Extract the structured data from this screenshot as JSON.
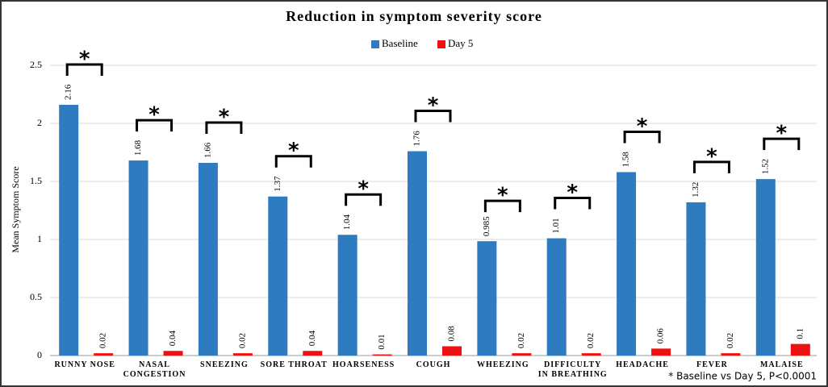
{
  "chart_data": {
    "type": "bar",
    "title": "Reduction in symptom severity score",
    "y_label": "Mean Symptom Score",
    "categories": [
      "RUNNY NOSE",
      "NASAL CONGESTION",
      "SNEEZING",
      "SORE THROAT",
      "HOARSENESS",
      "COUGH",
      "WHEEZING",
      "DIFFICULTY IN BREATHING",
      "HEADACHE",
      "FEVER",
      "MALAISE"
    ],
    "series": [
      {
        "name": "Baseline",
        "color": "#2e7bbf",
        "values": [
          2.16,
          1.68,
          1.66,
          1.37,
          1.04,
          1.76,
          0.985,
          1.01,
          1.58,
          1.32,
          1.52
        ]
      },
      {
        "name": "Day 5",
        "color": "#ee1111",
        "values": [
          0.02,
          0.04,
          0.02,
          0.04,
          0.01,
          0.08,
          0.02,
          0.02,
          0.06,
          0.02,
          0.1
        ]
      }
    ],
    "ylim": [
      0,
      2.5
    ],
    "yticks": [
      0,
      0.5,
      1,
      1.5,
      2,
      2.5
    ],
    "grid": true,
    "legend": "top",
    "significance_marker": "*",
    "footnote": "* Baseline vs Day 5, P<0.0001"
  }
}
